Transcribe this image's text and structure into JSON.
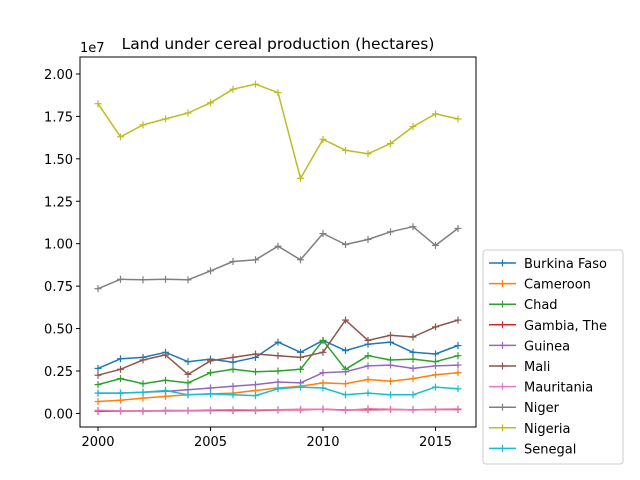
{
  "chart_data": {
    "type": "line",
    "title": "Land under cereal production (hectares)",
    "xlabel": "",
    "ylabel": "",
    "y_offset_label": "1e7",
    "xlim": [
      1999.2,
      2016.8
    ],
    "ylim": [
      -0.08,
      2.1
    ],
    "x_ticks": [
      2000,
      2005,
      2010,
      2015
    ],
    "y_ticks": [
      "0.00",
      "0.25",
      "0.50",
      "0.75",
      "1.00",
      "1.25",
      "1.50",
      "1.75",
      "2.00"
    ],
    "x": [
      2000,
      2001,
      2002,
      2003,
      2004,
      2005,
      2006,
      2007,
      2008,
      2009,
      2010,
      2011,
      2012,
      2013,
      2014,
      2015,
      2016
    ],
    "grid": false,
    "legend_position": "lower-right-outside",
    "series": [
      {
        "name": "Burkina Faso",
        "color": "#1f77b4",
        "values": [
          0.265,
          0.322,
          0.33,
          0.36,
          0.305,
          0.32,
          0.302,
          0.33,
          0.42,
          0.36,
          0.43,
          0.37,
          0.408,
          0.42,
          0.36,
          0.35,
          0.4
        ]
      },
      {
        "name": "Cameroon",
        "color": "#ff7f0e",
        "values": [
          0.07,
          0.078,
          0.09,
          0.1,
          0.11,
          0.115,
          0.12,
          0.135,
          0.15,
          0.16,
          0.18,
          0.175,
          0.2,
          0.19,
          0.205,
          0.228,
          0.24
        ]
      },
      {
        "name": "Chad",
        "color": "#2ca02c",
        "values": [
          0.17,
          0.205,
          0.175,
          0.195,
          0.18,
          0.24,
          0.26,
          0.245,
          0.25,
          0.26,
          0.43,
          0.26,
          0.34,
          0.315,
          0.32,
          0.305,
          0.34
        ]
      },
      {
        "name": "Gambia, The",
        "color": "#d62728",
        "values": [
          0.013,
          0.014,
          0.014,
          0.015,
          0.016,
          0.017,
          0.017,
          0.017,
          0.02,
          0.022,
          0.025,
          0.02,
          0.022,
          0.023,
          0.022,
          0.023,
          0.023
        ]
      },
      {
        "name": "Guinea",
        "color": "#9467bd",
        "values": [
          0.12,
          0.12,
          0.125,
          0.13,
          0.14,
          0.15,
          0.16,
          0.17,
          0.185,
          0.18,
          0.24,
          0.245,
          0.28,
          0.285,
          0.265,
          0.28,
          0.285
        ]
      },
      {
        "name": "Mali",
        "color": "#8c564b",
        "values": [
          0.225,
          0.26,
          0.315,
          0.345,
          0.23,
          0.31,
          0.33,
          0.35,
          0.34,
          0.33,
          0.36,
          0.55,
          0.43,
          0.46,
          0.45,
          0.51,
          0.55
        ]
      },
      {
        "name": "Mauritania",
        "color": "#e377c2",
        "values": [
          0.018,
          0.016,
          0.012,
          0.018,
          0.017,
          0.02,
          0.022,
          0.02,
          0.022,
          0.024,
          0.025,
          0.018,
          0.028,
          0.024,
          0.02,
          0.025,
          0.026
        ]
      },
      {
        "name": "Niger",
        "color": "#7f7f7f",
        "values": [
          0.735,
          0.79,
          0.787,
          0.79,
          0.787,
          0.84,
          0.895,
          0.905,
          0.985,
          0.905,
          1.06,
          0.995,
          1.025,
          1.07,
          1.1,
          0.99,
          1.09
        ]
      },
      {
        "name": "Nigeria",
        "color": "#bcbd22",
        "values": [
          1.825,
          1.63,
          1.7,
          1.735,
          1.77,
          1.83,
          1.91,
          1.94,
          1.89,
          1.385,
          1.615,
          1.55,
          1.53,
          1.59,
          1.69,
          1.765,
          1.735
        ]
      },
      {
        "name": "Senegal",
        "color": "#17becf",
        "values": [
          0.12,
          0.12,
          0.125,
          0.135,
          0.11,
          0.115,
          0.11,
          0.105,
          0.145,
          0.155,
          0.15,
          0.11,
          0.12,
          0.11,
          0.11,
          0.155,
          0.145
        ]
      }
    ]
  }
}
